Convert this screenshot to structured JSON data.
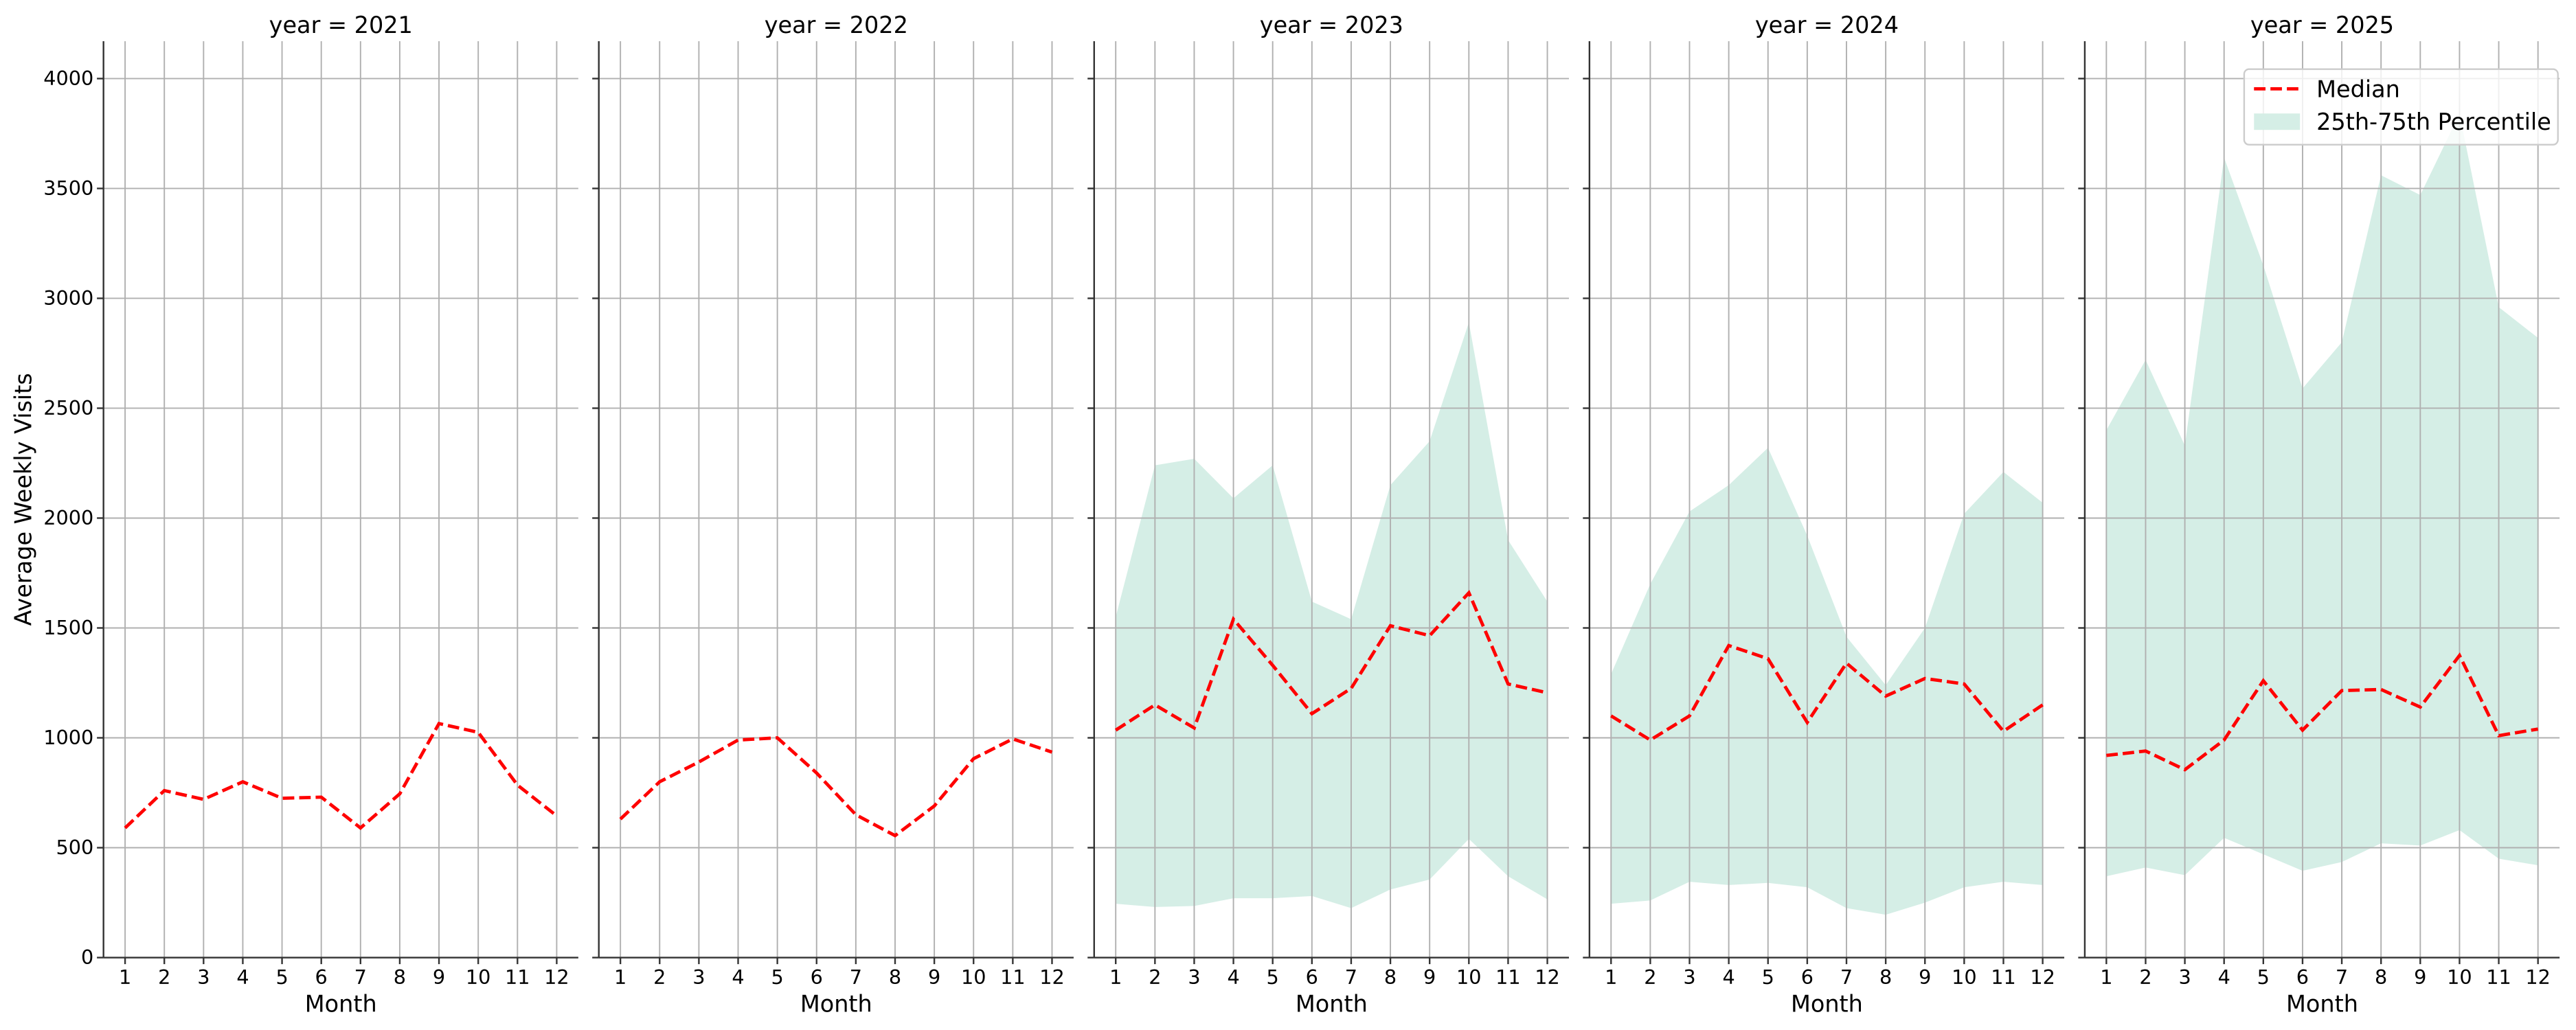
{
  "chart_data": {
    "type": "line",
    "y_label": "Average Weekly Visits",
    "x_label": "Month",
    "xticks": [
      1,
      2,
      3,
      4,
      5,
      6,
      7,
      8,
      9,
      10,
      11,
      12
    ],
    "xlim": [
      0.45,
      12.55
    ],
    "ylim": [
      0,
      4170
    ],
    "yticks": [
      0,
      500,
      1000,
      1500,
      2000,
      2500,
      3000,
      3500,
      4000
    ],
    "grid": true,
    "legend": "upper right",
    "series": [
      {
        "name": "Median",
        "color": "#ff0000"
      },
      {
        "name": "25th-75th Percentile",
        "color": "#d5eee6"
      }
    ],
    "panels": [
      {
        "title": "year = 2021",
        "x": [
          1,
          2,
          3,
          4,
          5,
          6,
          7,
          8,
          9,
          10,
          11,
          12
        ],
        "median": [
          590,
          760,
          720,
          800,
          725,
          730,
          590,
          745,
          1065,
          1025,
          785,
          645
        ]
      },
      {
        "title": "year = 2022",
        "x": [
          1,
          2,
          3,
          4,
          5,
          6,
          7,
          8,
          9,
          10,
          11,
          12
        ],
        "median": [
          630,
          800,
          890,
          990,
          1000,
          840,
          650,
          555,
          690,
          905,
          995,
          935
        ]
      },
      {
        "title": "year = 2023",
        "x": [
          1,
          2,
          3,
          4,
          5,
          6,
          7,
          8,
          9,
          10,
          11,
          12
        ],
        "median": [
          1035,
          1150,
          1045,
          1540,
          1330,
          1110,
          1225,
          1510,
          1465,
          1660,
          1245,
          1205
        ],
        "low": [
          245,
          230,
          235,
          270,
          270,
          280,
          225,
          310,
          355,
          540,
          370,
          265
        ],
        "high": [
          1550,
          2240,
          2270,
          2090,
          2240,
          1620,
          1540,
          2150,
          2350,
          2890,
          1900,
          1620
        ]
      },
      {
        "title": "year = 2024",
        "x": [
          1,
          2,
          3,
          4,
          5,
          6,
          7,
          8,
          9,
          10,
          11,
          12
        ],
        "median": [
          1100,
          990,
          1100,
          1420,
          1360,
          1070,
          1340,
          1190,
          1270,
          1245,
          1030,
          1150
        ],
        "low": [
          245,
          260,
          345,
          330,
          340,
          320,
          225,
          195,
          250,
          320,
          345,
          330
        ],
        "high": [
          1290,
          1700,
          2030,
          2150,
          2320,
          1920,
          1460,
          1240,
          1500,
          2020,
          2210,
          2070
        ]
      },
      {
        "title": "year = 2025",
        "x": [
          1,
          2,
          3,
          4,
          5,
          6,
          7,
          8,
          9,
          10,
          11,
          12
        ],
        "median": [
          920,
          940,
          855,
          990,
          1260,
          1035,
          1215,
          1220,
          1140,
          1375,
          1010,
          1040
        ],
        "low": [
          370,
          410,
          375,
          545,
          470,
          395,
          435,
          520,
          510,
          580,
          450,
          420
        ],
        "high": [
          2400,
          2720,
          2330,
          3640,
          3150,
          2590,
          2800,
          3560,
          3470,
          3840,
          2960,
          2820
        ]
      }
    ]
  }
}
